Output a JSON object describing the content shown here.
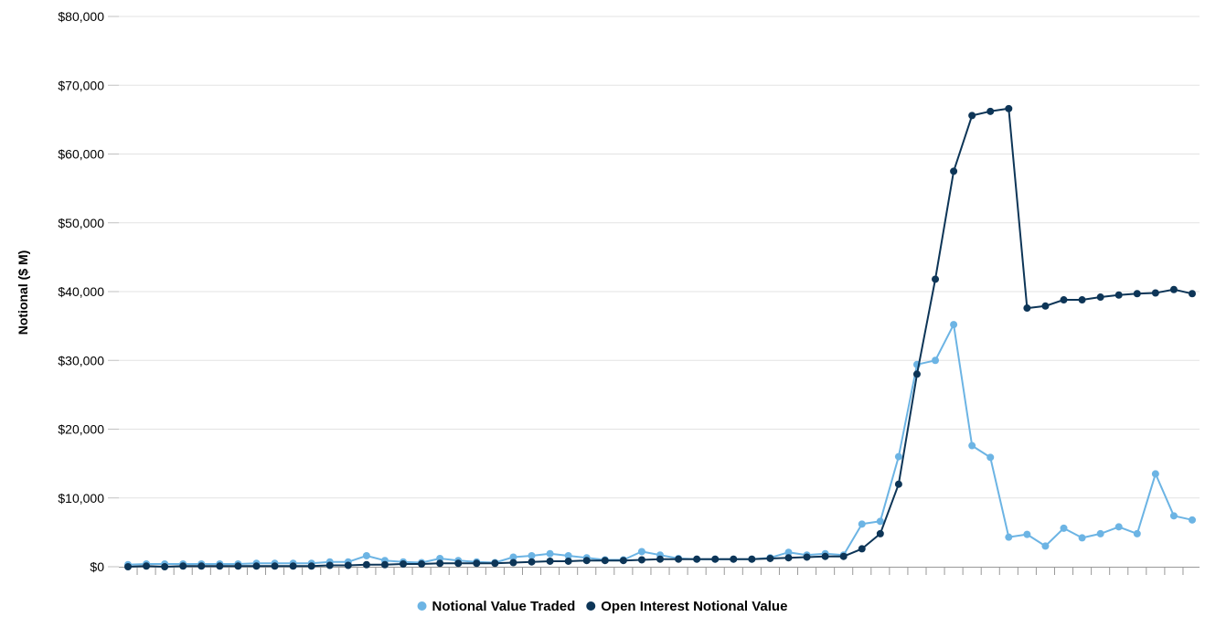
{
  "chart_data": {
    "type": "line",
    "ylabel": "Notional ($ M)",
    "ylim": [
      0,
      80000
    ],
    "y_ticks": [
      0,
      10000,
      20000,
      30000,
      40000,
      50000,
      60000,
      70000,
      80000
    ],
    "y_tick_labels": [
      "$0",
      "$10,000",
      "$20,000",
      "$30,000",
      "$40,000",
      "$50,000",
      "$60,000",
      "$70,000",
      "$80,000"
    ],
    "x_tick_labels": [],
    "grid": true,
    "legend_position": "bottom",
    "series": [
      {
        "name": "Notional Value Traded",
        "color": "#6cb4e4",
        "values": [
          300,
          400,
          400,
          400,
          400,
          400,
          400,
          500,
          500,
          500,
          500,
          700,
          700,
          1600,
          900,
          700,
          600,
          1200,
          900,
          700,
          600,
          1400,
          1600,
          1900,
          1600,
          1300,
          1000,
          1000,
          2200,
          1700,
          1200,
          1100,
          1100,
          1100,
          1100,
          1300,
          2100,
          1700,
          1900,
          1700,
          6200,
          6600,
          16000,
          29400,
          30000,
          35200,
          17600,
          15900,
          4300,
          4700,
          3000,
          5600,
          4200,
          4800,
          5800,
          4800,
          13500,
          7400,
          6800
        ]
      },
      {
        "name": "Open Interest Notional Value",
        "color": "#0d3557",
        "values": [
          0,
          100,
          0,
          100,
          100,
          100,
          100,
          100,
          100,
          100,
          100,
          200,
          200,
          300,
          300,
          400,
          400,
          500,
          500,
          500,
          500,
          600,
          700,
          800,
          800,
          900,
          900,
          900,
          1000,
          1100,
          1100,
          1100,
          1100,
          1100,
          1100,
          1200,
          1300,
          1400,
          1500,
          1500,
          2600,
          4800,
          12000,
          28000,
          41800,
          57500,
          65600,
          66200,
          66600,
          37600,
          37900,
          38800,
          38800,
          39200,
          39500,
          39700,
          39800,
          40300,
          39700
        ]
      }
    ]
  }
}
